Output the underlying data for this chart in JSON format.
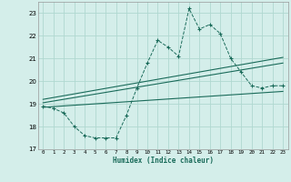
{
  "xlabel": "Humidex (Indice chaleur)",
  "bg_color": "#d4eeea",
  "grid_color": "#b0d8d0",
  "line_color": "#1a6b5a",
  "xlim": [
    -0.5,
    23.5
  ],
  "ylim": [
    17.0,
    23.5
  ],
  "yticks": [
    17,
    18,
    19,
    20,
    21,
    22,
    23
  ],
  "xticks": [
    0,
    1,
    2,
    3,
    4,
    5,
    6,
    7,
    8,
    9,
    10,
    11,
    12,
    13,
    14,
    15,
    16,
    17,
    18,
    19,
    20,
    21,
    22,
    23
  ],
  "line1_x": [
    0,
    1,
    2,
    3,
    4,
    5,
    6,
    7,
    8,
    9,
    10,
    11,
    12,
    13,
    14,
    15,
    16,
    17,
    18,
    19,
    20,
    21,
    22,
    23
  ],
  "line1_y": [
    18.9,
    18.8,
    18.6,
    18.0,
    17.6,
    17.5,
    17.5,
    17.5,
    18.5,
    19.7,
    20.8,
    21.8,
    21.5,
    21.1,
    23.2,
    22.3,
    22.5,
    22.1,
    21.0,
    20.4,
    19.8,
    19.7,
    19.8,
    19.8
  ],
  "line2_x": [
    0,
    23
  ],
  "line2_y": [
    19.05,
    20.8
  ],
  "line3_x": [
    0,
    23
  ],
  "line3_y": [
    18.85,
    19.55
  ],
  "line4_x": [
    0,
    23
  ],
  "line4_y": [
    19.2,
    21.05
  ]
}
